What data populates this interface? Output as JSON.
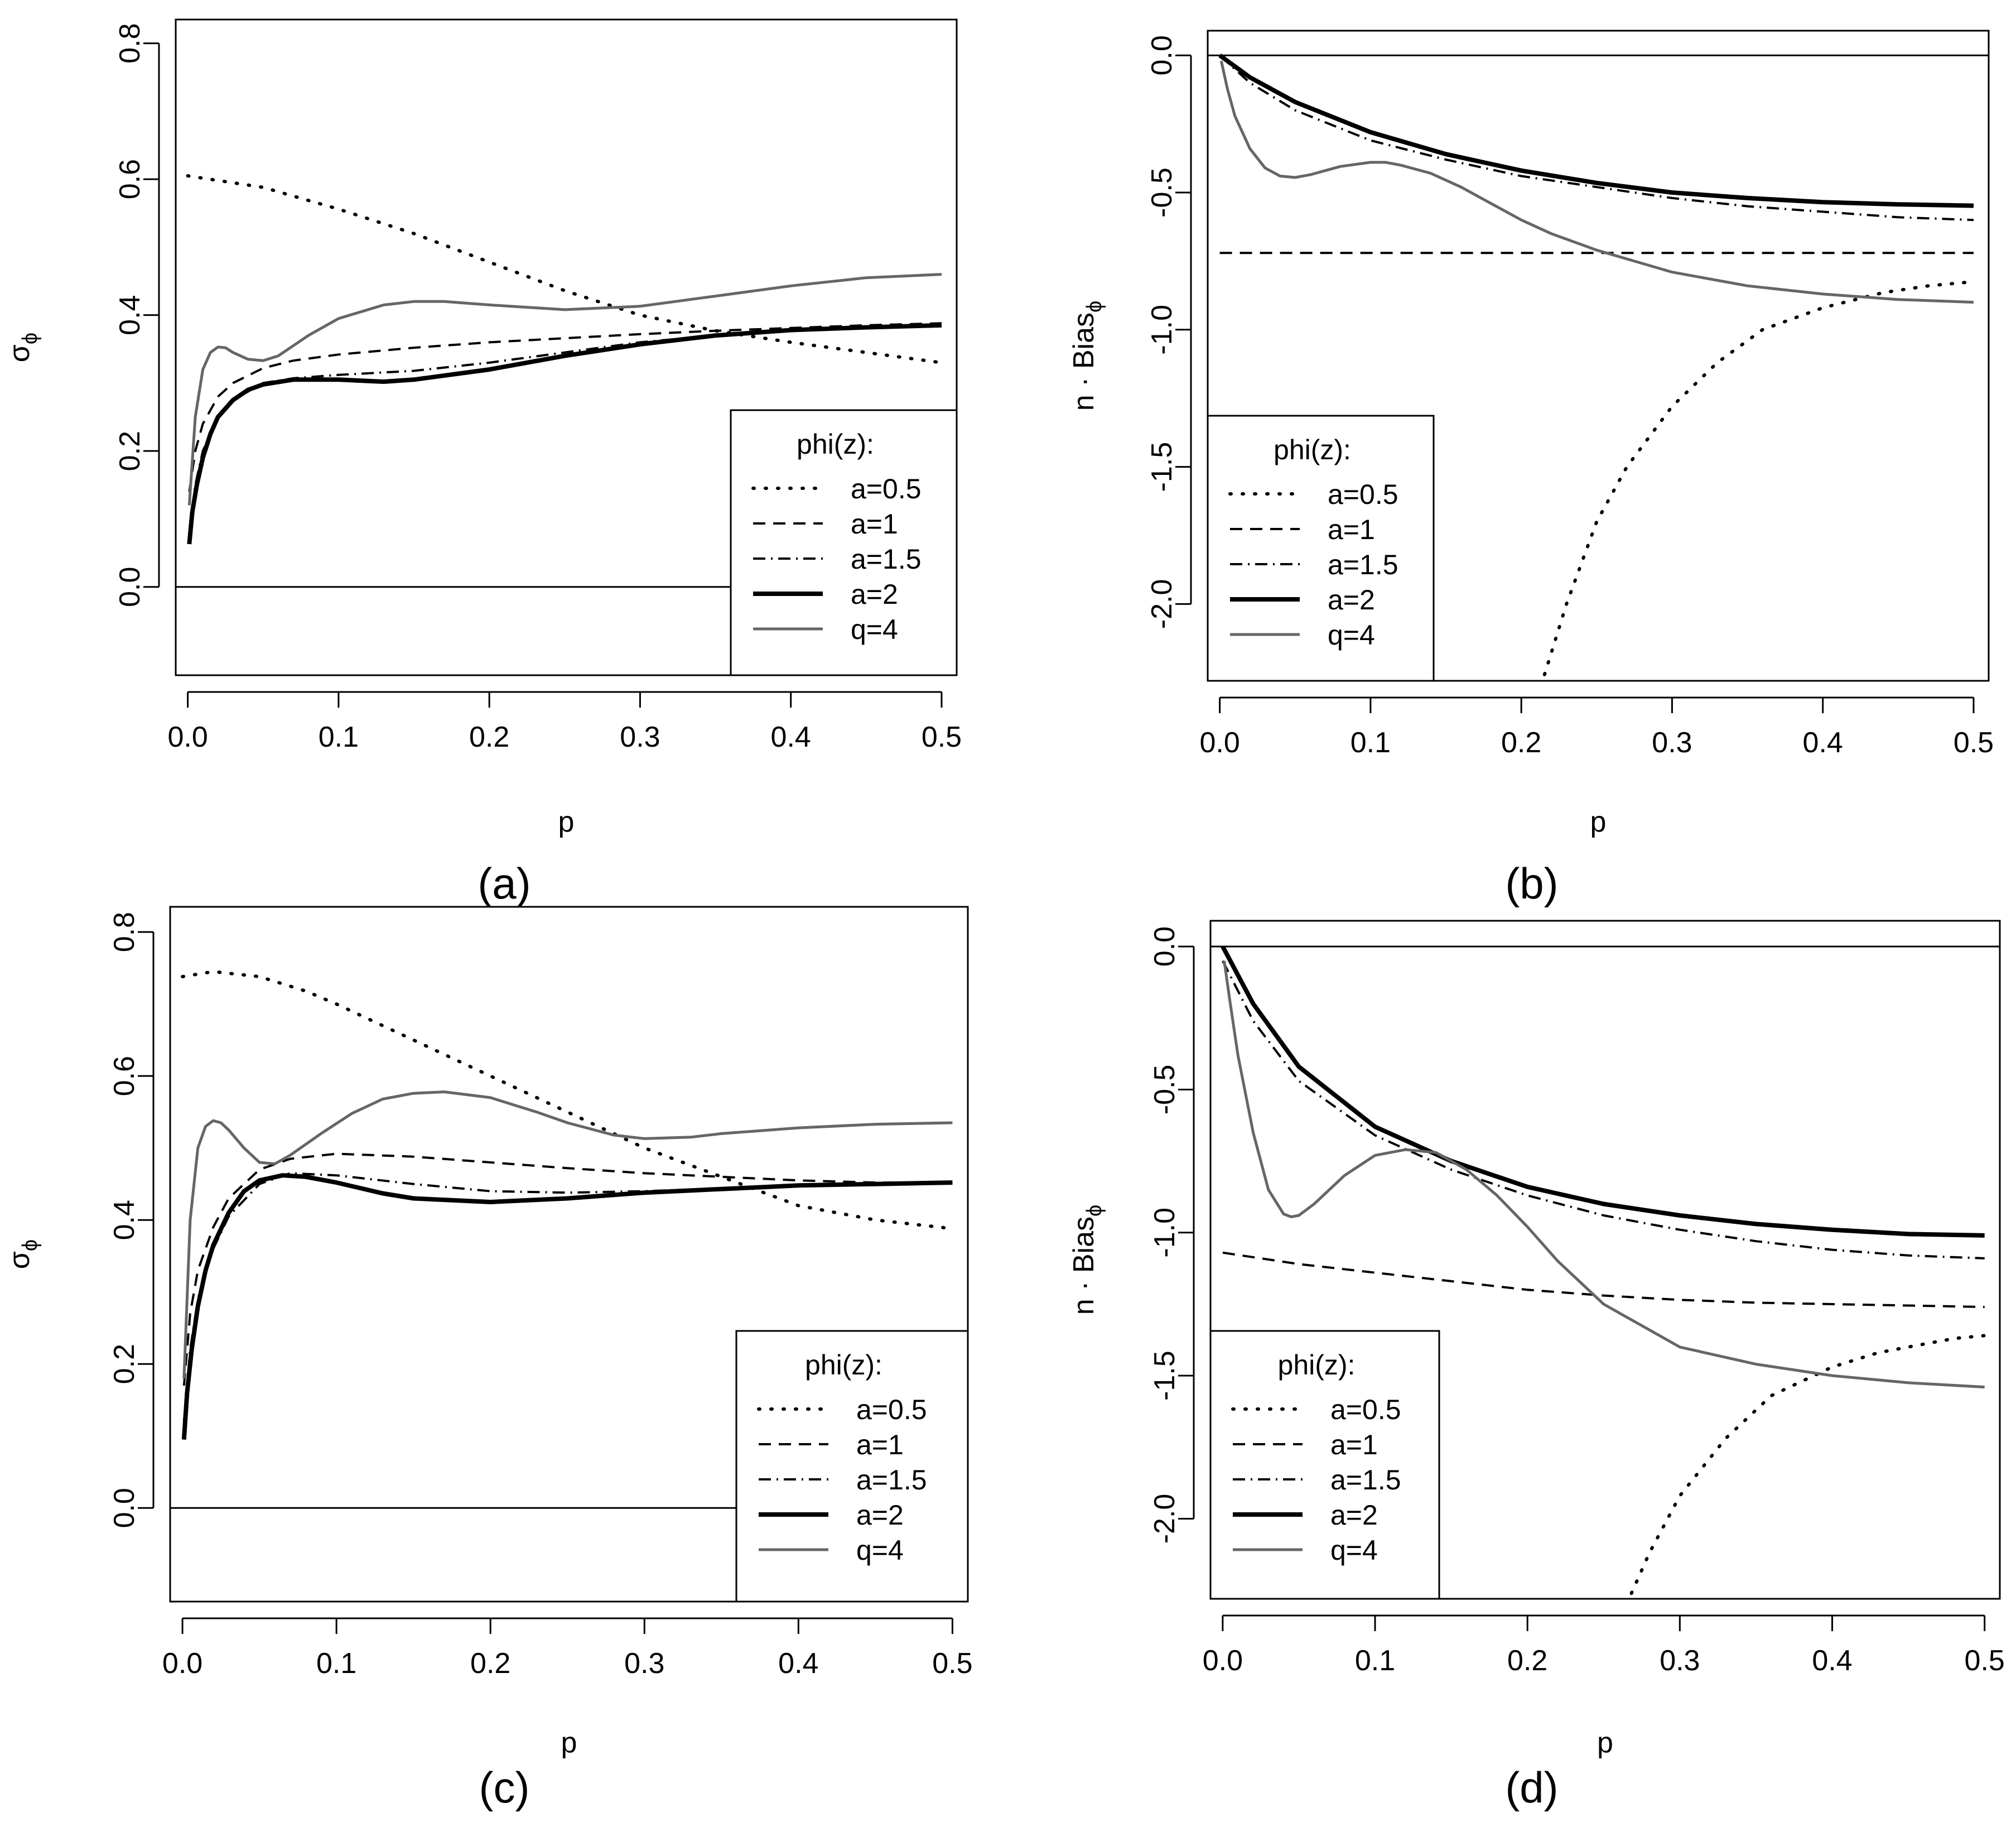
{
  "figure": {
    "legend_title": "phi(z):",
    "styles": {
      "a=0.5": {
        "color": "#000000",
        "dash": "2,20",
        "width": 6
      },
      "a=1": {
        "color": "#000000",
        "dash": "22,14",
        "width": 4
      },
      "a=1.5": {
        "color": "#000000",
        "dash": "22,10,3,10",
        "width": 4
      },
      "a=2": {
        "color": "#000000",
        "dash": "",
        "width": 8
      },
      "q=4": {
        "color": "#666666",
        "dash": "",
        "width": 5
      }
    }
  },
  "chart_data": [
    {
      "id": "a",
      "caption": "(a)",
      "type": "line",
      "title": "",
      "xlabel": "p",
      "ylabel": "σ",
      "ylabel_sub": "ϕ",
      "ylabel_prefix": "",
      "xlim": [
        -0.008,
        0.51
      ],
      "ylim": [
        -0.13,
        0.835
      ],
      "xticks": [
        "0.0",
        "0.1",
        "0.2",
        "0.3",
        "0.4",
        "0.5"
      ],
      "yticks": [
        "0.0",
        "0.2",
        "0.4",
        "0.6",
        "0.8"
      ],
      "hline": 0,
      "legend_position": "bottom-right",
      "series": [
        {
          "name": "a=0.5",
          "x": [
            0,
            0.05,
            0.1,
            0.15,
            0.2,
            0.25,
            0.3,
            0.35,
            0.4,
            0.45,
            0.5
          ],
          "values": [
            0.605,
            0.588,
            0.556,
            0.52,
            0.478,
            0.436,
            0.4,
            0.377,
            0.36,
            0.345,
            0.33
          ]
        },
        {
          "name": "a=1",
          "x": [
            0.001,
            0.005,
            0.01,
            0.02,
            0.03,
            0.05,
            0.07,
            0.1,
            0.15,
            0.2,
            0.25,
            0.3,
            0.35,
            0.4,
            0.45,
            0.5
          ],
          "values": [
            0.14,
            0.2,
            0.24,
            0.28,
            0.3,
            0.322,
            0.333,
            0.342,
            0.352,
            0.36,
            0.366,
            0.372,
            0.377,
            0.381,
            0.385,
            0.388
          ]
        },
        {
          "name": "a=1.5",
          "x": [
            0.001,
            0.005,
            0.01,
            0.02,
            0.03,
            0.05,
            0.07,
            0.1,
            0.15,
            0.2,
            0.25,
            0.3,
            0.35,
            0.4,
            0.45,
            0.5
          ],
          "values": [
            0.08,
            0.15,
            0.2,
            0.25,
            0.275,
            0.3,
            0.307,
            0.312,
            0.318,
            0.33,
            0.345,
            0.36,
            0.37,
            0.378,
            0.383,
            0.386
          ]
        },
        {
          "name": "a=2",
          "x": [
            0.001,
            0.003,
            0.006,
            0.01,
            0.015,
            0.02,
            0.03,
            0.04,
            0.05,
            0.07,
            0.1,
            0.13,
            0.15,
            0.2,
            0.25,
            0.3,
            0.35,
            0.4,
            0.45,
            0.5
          ],
          "values": [
            0.063,
            0.11,
            0.15,
            0.19,
            0.225,
            0.25,
            0.275,
            0.29,
            0.298,
            0.305,
            0.305,
            0.302,
            0.305,
            0.32,
            0.34,
            0.357,
            0.37,
            0.378,
            0.382,
            0.385
          ]
        },
        {
          "name": "q=4",
          "x": [
            0.001,
            0.005,
            0.01,
            0.015,
            0.02,
            0.025,
            0.03,
            0.04,
            0.05,
            0.06,
            0.08,
            0.1,
            0.13,
            0.15,
            0.17,
            0.2,
            0.25,
            0.3,
            0.35,
            0.4,
            0.45,
            0.5
          ],
          "values": [
            0.12,
            0.25,
            0.32,
            0.345,
            0.353,
            0.352,
            0.345,
            0.335,
            0.333,
            0.34,
            0.37,
            0.395,
            0.415,
            0.42,
            0.42,
            0.415,
            0.408,
            0.413,
            0.428,
            0.443,
            0.455,
            0.46
          ]
        }
      ]
    },
    {
      "id": "b",
      "caption": "(b)",
      "type": "line",
      "title": "",
      "xlabel": "p",
      "ylabel": "Bias",
      "ylabel_sub": "ϕ",
      "ylabel_prefix": "n · ",
      "xlim": [
        -0.008,
        0.51
      ],
      "ylim": [
        -2.28,
        0.09
      ],
      "xticks": [
        "0.0",
        "0.1",
        "0.2",
        "0.3",
        "0.4",
        "0.5"
      ],
      "yticks": [
        "0.0",
        "-0.5",
        "-1.0",
        "-1.5",
        "-2.0"
      ],
      "hline": 0,
      "legend_position": "bottom-left",
      "series": [
        {
          "name": "a=0.5",
          "x": [
            0.213,
            0.23,
            0.25,
            0.27,
            0.3,
            0.33,
            0.36,
            0.4,
            0.44,
            0.47,
            0.5
          ],
          "values": [
            -2.3,
            -2.0,
            -1.7,
            -1.5,
            -1.28,
            -1.12,
            -1.0,
            -0.92,
            -0.865,
            -0.84,
            -0.825
          ]
        },
        {
          "name": "a=1",
          "x": [
            0,
            0.5
          ],
          "values": [
            -0.72,
            -0.72
          ]
        },
        {
          "name": "a=1.5",
          "x": [
            0,
            0.02,
            0.05,
            0.1,
            0.15,
            0.2,
            0.25,
            0.3,
            0.35,
            0.4,
            0.45,
            0.5
          ],
          "values": [
            0,
            -0.1,
            -0.2,
            -0.31,
            -0.38,
            -0.44,
            -0.48,
            -0.52,
            -0.55,
            -0.57,
            -0.59,
            -0.6
          ]
        },
        {
          "name": "a=2",
          "x": [
            0,
            0.02,
            0.05,
            0.1,
            0.15,
            0.2,
            0.25,
            0.3,
            0.35,
            0.4,
            0.45,
            0.5
          ],
          "values": [
            0,
            -0.08,
            -0.17,
            -0.28,
            -0.36,
            -0.42,
            -0.465,
            -0.5,
            -0.52,
            -0.535,
            -0.543,
            -0.548
          ]
        },
        {
          "name": "q=4",
          "x": [
            0.001,
            0.005,
            0.01,
            0.02,
            0.03,
            0.04,
            0.05,
            0.06,
            0.07,
            0.08,
            0.1,
            0.11,
            0.12,
            0.14,
            0.16,
            0.18,
            0.2,
            0.22,
            0.25,
            0.3,
            0.35,
            0.4,
            0.45,
            0.5
          ],
          "values": [
            -0.02,
            -0.12,
            -0.22,
            -0.34,
            -0.41,
            -0.44,
            -0.445,
            -0.435,
            -0.42,
            -0.405,
            -0.39,
            -0.39,
            -0.4,
            -0.43,
            -0.48,
            -0.54,
            -0.6,
            -0.65,
            -0.71,
            -0.79,
            -0.84,
            -0.87,
            -0.89,
            -0.9
          ]
        }
      ]
    },
    {
      "id": "c",
      "caption": "(c)",
      "type": "line",
      "title": "",
      "xlabel": "p",
      "ylabel": "σ",
      "ylabel_sub": "ϕ",
      "ylabel_prefix": "",
      "xlim": [
        -0.008,
        0.51
      ],
      "ylim": [
        -0.13,
        0.835
      ],
      "xticks": [
        "0.0",
        "0.1",
        "0.2",
        "0.3",
        "0.4",
        "0.5"
      ],
      "yticks": [
        "0.0",
        "0.2",
        "0.4",
        "0.6",
        "0.8"
      ],
      "hline": 0,
      "legend_position": "bottom-right",
      "series": [
        {
          "name": "a=0.5",
          "x": [
            0,
            0.02,
            0.05,
            0.08,
            0.1,
            0.15,
            0.2,
            0.25,
            0.3,
            0.35,
            0.4,
            0.45,
            0.5
          ],
          "values": [
            0.738,
            0.745,
            0.738,
            0.718,
            0.7,
            0.65,
            0.6,
            0.55,
            0.5,
            0.46,
            0.42,
            0.4,
            0.388
          ]
        },
        {
          "name": "a=1",
          "x": [
            0.001,
            0.005,
            0.01,
            0.02,
            0.03,
            0.05,
            0.07,
            0.1,
            0.15,
            0.2,
            0.25,
            0.3,
            0.35,
            0.4,
            0.45,
            0.5
          ],
          "values": [
            0.17,
            0.27,
            0.33,
            0.39,
            0.43,
            0.47,
            0.485,
            0.492,
            0.488,
            0.48,
            0.472,
            0.465,
            0.46,
            0.455,
            0.452,
            0.452
          ]
        },
        {
          "name": "a=1.5",
          "x": [
            0.001,
            0.005,
            0.01,
            0.02,
            0.03,
            0.05,
            0.07,
            0.1,
            0.15,
            0.2,
            0.25,
            0.3,
            0.35,
            0.4,
            0.45,
            0.5
          ],
          "values": [
            0.12,
            0.22,
            0.29,
            0.36,
            0.405,
            0.45,
            0.465,
            0.462,
            0.45,
            0.44,
            0.438,
            0.44,
            0.444,
            0.448,
            0.45,
            0.452
          ]
        },
        {
          "name": "a=2",
          "x": [
            0.001,
            0.003,
            0.006,
            0.01,
            0.015,
            0.02,
            0.03,
            0.04,
            0.05,
            0.065,
            0.08,
            0.1,
            0.13,
            0.15,
            0.2,
            0.25,
            0.3,
            0.35,
            0.4,
            0.45,
            0.5
          ],
          "values": [
            0.095,
            0.16,
            0.22,
            0.28,
            0.33,
            0.365,
            0.41,
            0.44,
            0.455,
            0.462,
            0.46,
            0.452,
            0.437,
            0.43,
            0.425,
            0.43,
            0.438,
            0.443,
            0.448,
            0.45,
            0.452
          ]
        },
        {
          "name": "q=4",
          "x": [
            0.001,
            0.005,
            0.01,
            0.015,
            0.02,
            0.025,
            0.03,
            0.04,
            0.05,
            0.06,
            0.07,
            0.09,
            0.11,
            0.13,
            0.15,
            0.17,
            0.2,
            0.23,
            0.25,
            0.28,
            0.3,
            0.33,
            0.35,
            0.4,
            0.45,
            0.5
          ],
          "values": [
            0.18,
            0.4,
            0.5,
            0.53,
            0.538,
            0.535,
            0.525,
            0.5,
            0.48,
            0.478,
            0.49,
            0.52,
            0.548,
            0.568,
            0.576,
            0.578,
            0.57,
            0.55,
            0.535,
            0.518,
            0.513,
            0.515,
            0.52,
            0.528,
            0.533,
            0.535
          ]
        }
      ]
    },
    {
      "id": "d",
      "caption": "(d)",
      "type": "line",
      "title": "",
      "xlabel": "p",
      "ylabel": "Bias",
      "ylabel_sub": "ϕ",
      "ylabel_prefix": "n · ",
      "xlim": [
        -0.008,
        0.51
      ],
      "ylim": [
        -2.28,
        0.09
      ],
      "xticks": [
        "0.0",
        "0.1",
        "0.2",
        "0.3",
        "0.4",
        "0.5"
      ],
      "yticks": [
        "0.0",
        "-0.5",
        "-1.0",
        "-1.5",
        "-2.0"
      ],
      "hline": 0,
      "legend_position": "bottom-left",
      "series": [
        {
          "name": "a=0.5",
          "x": [
            0.265,
            0.28,
            0.3,
            0.33,
            0.36,
            0.4,
            0.43,
            0.46,
            0.48,
            0.5
          ],
          "values": [
            -2.3,
            -2.12,
            -1.92,
            -1.72,
            -1.57,
            -1.47,
            -1.42,
            -1.39,
            -1.37,
            -1.36
          ]
        },
        {
          "name": "a=1",
          "x": [
            0,
            0.05,
            0.1,
            0.15,
            0.2,
            0.25,
            0.3,
            0.35,
            0.4,
            0.45,
            0.5
          ],
          "values": [
            -1.07,
            -1.11,
            -1.14,
            -1.17,
            -1.2,
            -1.22,
            -1.235,
            -1.245,
            -1.25,
            -1.255,
            -1.26
          ]
        },
        {
          "name": "a=1.5",
          "x": [
            0,
            0.02,
            0.05,
            0.1,
            0.15,
            0.2,
            0.25,
            0.3,
            0.35,
            0.4,
            0.45,
            0.5
          ],
          "values": [
            -0.05,
            -0.26,
            -0.47,
            -0.66,
            -0.78,
            -0.87,
            -0.94,
            -0.99,
            -1.03,
            -1.06,
            -1.08,
            -1.09
          ]
        },
        {
          "name": "a=2",
          "x": [
            0,
            0.02,
            0.05,
            0.1,
            0.15,
            0.2,
            0.25,
            0.3,
            0.35,
            0.4,
            0.45,
            0.5
          ],
          "values": [
            0,
            -0.2,
            -0.42,
            -0.63,
            -0.75,
            -0.84,
            -0.9,
            -0.94,
            -0.97,
            -0.99,
            -1.005,
            -1.01
          ]
        },
        {
          "name": "q=4",
          "x": [
            0.001,
            0.005,
            0.01,
            0.02,
            0.03,
            0.04,
            0.045,
            0.05,
            0.06,
            0.08,
            0.1,
            0.12,
            0.14,
            0.16,
            0.18,
            0.2,
            0.22,
            0.25,
            0.3,
            0.35,
            0.4,
            0.45,
            0.5
          ],
          "values": [
            -0.05,
            -0.2,
            -0.38,
            -0.65,
            -0.85,
            -0.935,
            -0.945,
            -0.94,
            -0.9,
            -0.8,
            -0.73,
            -0.71,
            -0.72,
            -0.78,
            -0.87,
            -0.98,
            -1.1,
            -1.25,
            -1.4,
            -1.46,
            -1.5,
            -1.525,
            -1.54
          ]
        }
      ]
    }
  ]
}
